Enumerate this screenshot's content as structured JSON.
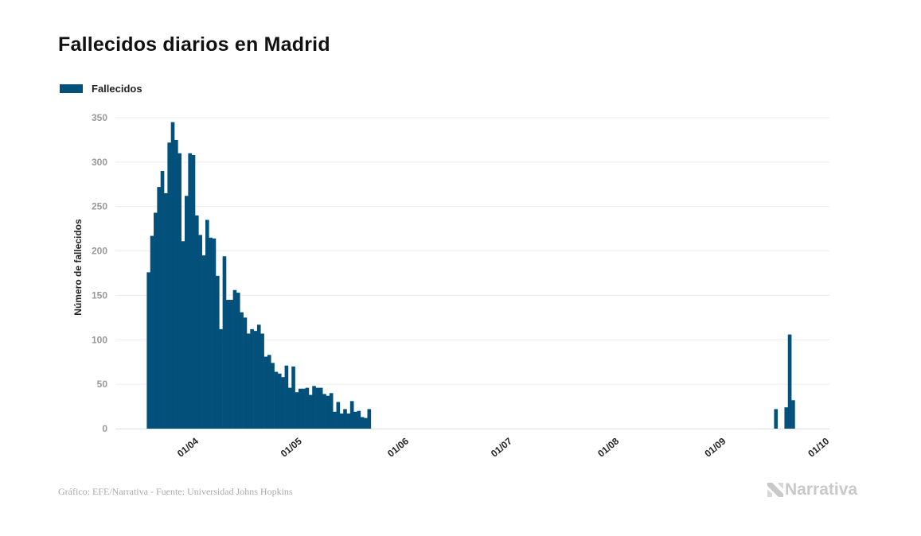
{
  "title": "Fallecidos diarios en Madrid",
  "footer": "Gráfico: EFE/Narrativa - Fuente: Universidad Johns Hopkins",
  "logo": "Narrativa",
  "colors": {
    "bar": "#03517a",
    "grid": "#ececec",
    "tick_text": "#999999",
    "logo": "#c9c9c9"
  },
  "chart_data": {
    "type": "bar",
    "title": "Fallecidos diarios en Madrid",
    "xlabel": "",
    "ylabel": "Número de fallecidos",
    "ylim": [
      0,
      350
    ],
    "yticks": [
      0,
      50,
      100,
      150,
      200,
      250,
      300,
      350
    ],
    "xticks": [
      "01/04",
      "01/05",
      "01/06",
      "01/07",
      "01/08",
      "01/09",
      "01/10"
    ],
    "grid": true,
    "legend": "top-left",
    "series": [
      {
        "name": "Fallecidos",
        "points": [
          [
            "18/03",
            176
          ],
          [
            "19/03",
            217
          ],
          [
            "20/03",
            243
          ],
          [
            "21/03",
            272
          ],
          [
            "22/03",
            290
          ],
          [
            "23/03",
            265
          ],
          [
            "24/03",
            322
          ],
          [
            "25/03",
            345
          ],
          [
            "26/03",
            325
          ],
          [
            "27/03",
            310
          ],
          [
            "28/03",
            211
          ],
          [
            "29/03",
            262
          ],
          [
            "30/03",
            310
          ],
          [
            "31/03",
            308
          ],
          [
            "01/04",
            240
          ],
          [
            "02/04",
            218
          ],
          [
            "03/04",
            195
          ],
          [
            "04/04",
            235
          ],
          [
            "05/04",
            215
          ],
          [
            "06/04",
            214
          ],
          [
            "07/04",
            172
          ],
          [
            "08/04",
            112
          ],
          [
            "09/04",
            194
          ],
          [
            "10/04",
            145
          ],
          [
            "11/04",
            145
          ],
          [
            "12/04",
            156
          ],
          [
            "13/04",
            153
          ],
          [
            "14/04",
            131
          ],
          [
            "15/04",
            125
          ],
          [
            "16/04",
            107
          ],
          [
            "17/04",
            112
          ],
          [
            "18/04",
            110
          ],
          [
            "19/04",
            117
          ],
          [
            "20/04",
            107
          ],
          [
            "21/04",
            81
          ],
          [
            "22/04",
            83
          ],
          [
            "23/04",
            74
          ],
          [
            "24/04",
            64
          ],
          [
            "25/04",
            62
          ],
          [
            "26/04",
            58
          ],
          [
            "27/04",
            71
          ],
          [
            "28/04",
            46
          ],
          [
            "29/04",
            70
          ],
          [
            "30/04",
            41
          ],
          [
            "01/05",
            45
          ],
          [
            "02/05",
            45
          ],
          [
            "03/05",
            46
          ],
          [
            "04/05",
            38
          ],
          [
            "05/05",
            48
          ],
          [
            "06/05",
            46
          ],
          [
            "07/05",
            46
          ],
          [
            "08/05",
            39
          ],
          [
            "09/05",
            37
          ],
          [
            "10/05",
            40
          ],
          [
            "11/05",
            19
          ],
          [
            "12/05",
            30
          ],
          [
            "13/05",
            17
          ],
          [
            "14/05",
            22
          ],
          [
            "15/05",
            17
          ],
          [
            "16/05",
            31
          ],
          [
            "17/05",
            19
          ],
          [
            "18/05",
            20
          ],
          [
            "19/05",
            13
          ],
          [
            "20/05",
            12
          ],
          [
            "21/05",
            22
          ],
          [
            "16/09",
            22
          ],
          [
            "19/09",
            24
          ],
          [
            "20/09",
            106
          ],
          [
            "21/09",
            32
          ]
        ]
      }
    ]
  }
}
